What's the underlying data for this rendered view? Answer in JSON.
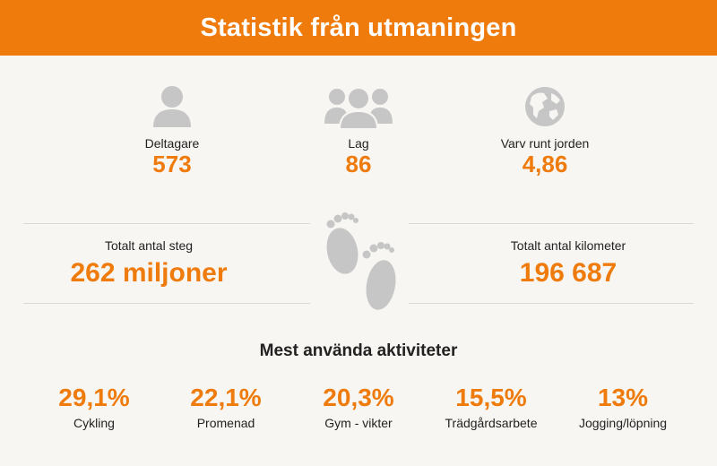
{
  "header": {
    "title": "Statistik från utmaningen"
  },
  "stats": [
    {
      "icon": "person-icon",
      "label": "Deltagare",
      "value": "573"
    },
    {
      "icon": "group-icon",
      "label": "Lag",
      "value": "86"
    },
    {
      "icon": "globe-icon",
      "label": "Varv runt jorden",
      "value": "4,86"
    }
  ],
  "totals": {
    "steps": {
      "label": "Totalt antal steg",
      "value": "262 miljoner"
    },
    "km": {
      "label": "Totalt antal kilometer",
      "value": "196 687"
    },
    "icon": "footprints-icon"
  },
  "activities_title": "Mest använda aktiviteter",
  "activities": [
    {
      "pct": "29,1%",
      "name": "Cykling"
    },
    {
      "pct": "22,1%",
      "name": "Promenad"
    },
    {
      "pct": "20,3%",
      "name": "Gym - vikter"
    },
    {
      "pct": "15,5%",
      "name": "Trädgårdsarbete"
    },
    {
      "pct": "13%",
      "name": "Jogging/löpning"
    }
  ],
  "colors": {
    "accent": "#ee7b0c",
    "icon": "#c6c6c6",
    "background": "#f8f6f2"
  }
}
